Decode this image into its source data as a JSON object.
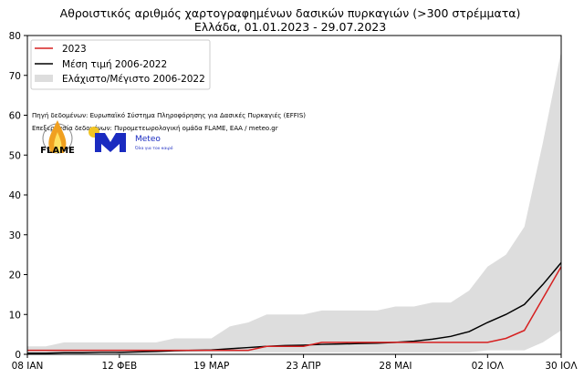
{
  "chart_data": {
    "type": "line",
    "title": "Αθροιστικός αριθμός χαρτογραφημένων δασικών πυρκαγιών (>300 στρέμματα)",
    "subtitle": "Ελλάδα, 01.01.2023 - 29.07.2023",
    "xlabel": "",
    "ylabel": "",
    "ylim": [
      0,
      80
    ],
    "yticks": [
      0,
      10,
      20,
      30,
      40,
      50,
      60,
      70,
      80
    ],
    "xticks": [
      {
        "week": 0,
        "label": "08 ΙΑΝ"
      },
      {
        "week": 5,
        "label": "12 ΦΕΒ"
      },
      {
        "week": 10,
        "label": "19 ΜΑΡ"
      },
      {
        "week": 15,
        "label": "23 ΑΠΡ"
      },
      {
        "week": 20,
        "label": "28 ΜΑΙ"
      },
      {
        "week": 25,
        "label": "02 ΙΟΛ"
      },
      {
        "week": 29,
        "label": "30 ΙΟΛ"
      }
    ],
    "x_weeks_from_08_jan": [
      0,
      1,
      2,
      3,
      4,
      5,
      6,
      7,
      8,
      9,
      10,
      11,
      12,
      13,
      14,
      15,
      16,
      17,
      18,
      19,
      20,
      21,
      22,
      23,
      24,
      25,
      26,
      27,
      28,
      29
    ],
    "band": {
      "name": "Ελάχιστο/Μέγιστο 2006-2022",
      "color": "#dddddd",
      "min": [
        0.5,
        0.5,
        0.5,
        0.5,
        0.5,
        0.5,
        0.5,
        0.5,
        0.5,
        0.5,
        0.5,
        0.5,
        0.5,
        0.5,
        0.5,
        0.5,
        0.5,
        0.5,
        0.5,
        0.5,
        0.5,
        0.5,
        0.5,
        0.5,
        0.5,
        1,
        1,
        1,
        3,
        6
      ],
      "max": [
        2,
        2,
        3,
        3,
        3,
        3,
        3,
        3,
        4,
        4,
        4,
        7,
        8,
        10,
        10,
        10,
        11,
        11,
        11,
        11,
        12,
        12,
        13,
        13,
        16,
        22,
        25,
        32,
        53,
        76
      ]
    },
    "series": [
      {
        "name": "2023",
        "color": "#d62020",
        "values": [
          1,
          1,
          1,
          1,
          1,
          1,
          1,
          1,
          1,
          1,
          1,
          1,
          1,
          2,
          2,
          2,
          3,
          3,
          3,
          3,
          3,
          3,
          3,
          3,
          3,
          3,
          4,
          6,
          14,
          22
        ]
      },
      {
        "name": "Μέση τιμή 2006-2022",
        "color": "#000000",
        "values": [
          0.3,
          0.3,
          0.4,
          0.4,
          0.5,
          0.5,
          0.6,
          0.7,
          0.9,
          1.0,
          1.1,
          1.4,
          1.7,
          2.0,
          2.2,
          2.3,
          2.5,
          2.6,
          2.7,
          2.8,
          3.0,
          3.3,
          3.8,
          4.5,
          5.7,
          8,
          10,
          12.5,
          17.5,
          23
        ]
      }
    ],
    "legend": "top-left",
    "grid": false,
    "annotations": [
      "Πηγή δεδομένων: Ευρωπαϊκό Σύστημα Πληροφόρησης για Δασικές Πυρκαγιές (EFFIS)",
      "Επεξεργασία δεδομένων: Πυρομετεωρολογική ομάδα FLAME, ΕΑΑ / meteo.gr"
    ],
    "logos": {
      "flame": "FLAME",
      "meteo": "Meteo",
      "meteo_tagline": "Όλα για τον καιρό"
    }
  }
}
